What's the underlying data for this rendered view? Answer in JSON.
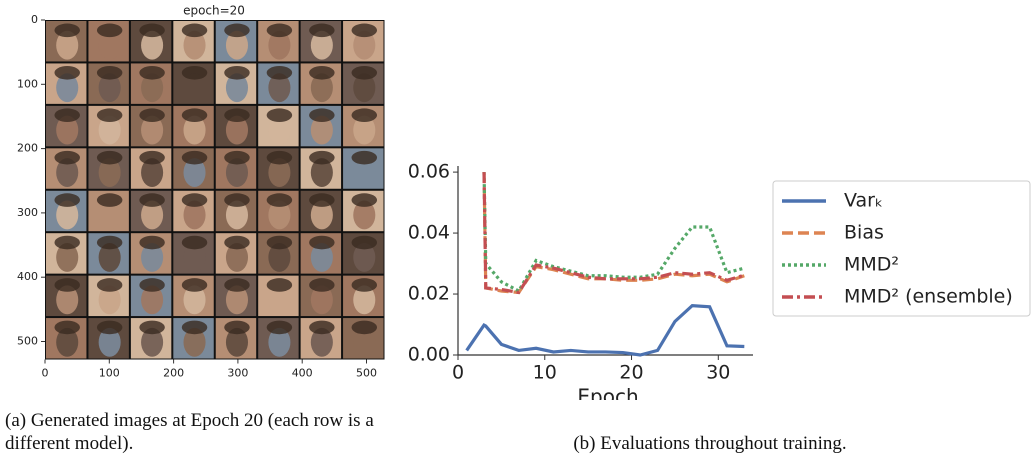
{
  "chart_data": [
    {
      "type": "image",
      "title": "epoch=20",
      "grid_rows": 8,
      "grid_cols": 8,
      "xlim": [
        0,
        528
      ],
      "ylim": [
        0,
        528
      ],
      "invert_y": true,
      "xticks": [
        0,
        100,
        200,
        300,
        400,
        500
      ],
      "yticks": [
        0,
        100,
        200,
        300,
        400,
        500
      ],
      "caption": "(a) Generated images at Epoch 20 (each row is a different model)."
    },
    {
      "type": "line",
      "xlabel": "Epoch",
      "x": [
        1,
        3,
        3.2,
        5,
        7,
        9,
        11,
        13,
        15,
        17,
        19,
        21,
        23,
        25,
        27,
        29,
        31,
        33
      ],
      "series": [
        {
          "name": "Varₖ",
          "color": "#4c72b0",
          "linestyle": "solid",
          "values": [
            0.0015,
            0.0098,
            0.0095,
            0.0035,
            0.0015,
            0.0022,
            0.001,
            0.0015,
            0.001,
            0.001,
            0.0008,
            0,
            0.0015,
            0.011,
            0.0162,
            0.0158,
            0.003,
            0.0028
          ]
        },
        {
          "name": "Bias",
          "color": "#dd8452",
          "linestyle": "dashed",
          "values": [
            null,
            0.06,
            0.022,
            0.021,
            0.0205,
            0.029,
            0.028,
            0.0265,
            0.025,
            0.025,
            0.0245,
            0.0245,
            0.025,
            0.0265,
            0.026,
            0.0265,
            0.024,
            0.026
          ]
        },
        {
          "name": "MMD²",
          "color": "#55a868",
          "linestyle": "dotted",
          "values": [
            null,
            0.06,
            0.03,
            0.024,
            0.021,
            0.031,
            0.029,
            0.0275,
            0.026,
            0.026,
            0.0255,
            0.0255,
            0.0265,
            0.035,
            0.042,
            0.042,
            0.027,
            0.0285
          ]
        },
        {
          "name": "MMD² (ensemble)",
          "color": "#c44e52",
          "linestyle": "dashdot",
          "values": [
            null,
            0.06,
            0.022,
            0.0215,
            0.0205,
            0.0295,
            0.0285,
            0.027,
            0.0255,
            0.025,
            0.025,
            0.025,
            0.0255,
            0.027,
            0.0265,
            0.027,
            0.0245,
            0.0262
          ]
        }
      ],
      "xlim": [
        0,
        34
      ],
      "ylim": [
        0,
        0.062
      ],
      "xticks": [
        0,
        10,
        20,
        30
      ],
      "yticks": [
        {
          "value": 0,
          "label": "0.00"
        },
        {
          "value": 0.02,
          "label": "0.02"
        },
        {
          "value": 0.04,
          "label": "0.04"
        },
        {
          "value": 0.06,
          "label": "0.06"
        }
      ],
      "legend": "outside-right",
      "caption": "(b) Evaluations throughout training."
    }
  ]
}
